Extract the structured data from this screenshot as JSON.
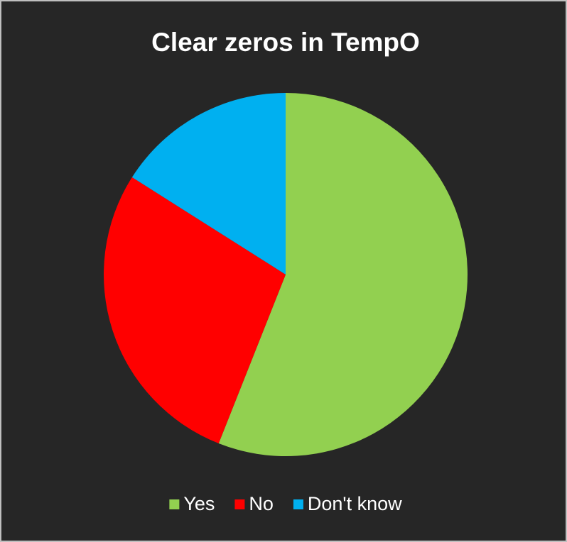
{
  "chart_data": {
    "type": "pie",
    "title": "Clear zeros in TempO",
    "categories": [
      "Yes",
      "No",
      "Don't know"
    ],
    "values": [
      56,
      28,
      16
    ],
    "colors": [
      "#92d050",
      "#ff0000",
      "#00b0f0"
    ],
    "legend": "bottom"
  }
}
